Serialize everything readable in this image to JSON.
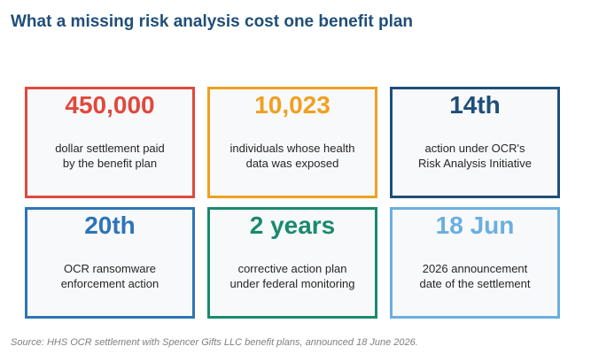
{
  "title": "What a missing risk analysis cost one benefit plan",
  "colors": {
    "title": "#1f4e79",
    "red": "#e0493d",
    "orange": "#f0a020",
    "navy": "#1f4e79",
    "blue": "#2e75b6",
    "green": "#1a8a6e",
    "light_blue": "#6aafe0",
    "card_background": "#f8f9fb",
    "description_text": "#262626",
    "source_text": "#808080"
  },
  "cards": [
    {
      "value": "450,000",
      "desc_line1": "dollar settlement paid",
      "desc_line2": "by the benefit plan",
      "color": "#e0493d"
    },
    {
      "value": "10,023",
      "desc_line1": "individuals whose health",
      "desc_line2": "data was exposed",
      "color": "#f0a020"
    },
    {
      "value": "14th",
      "desc_line1": "action under OCR's",
      "desc_line2": "Risk Analysis Initiative",
      "color": "#1f4e79"
    },
    {
      "value": "20th",
      "desc_line1": "OCR ransomware",
      "desc_line2": "enforcement action",
      "color": "#2e75b6"
    },
    {
      "value": "2 years",
      "desc_line1": "corrective action plan",
      "desc_line2": "under federal monitoring",
      "color": "#1a8a6e"
    },
    {
      "value": "18 Jun",
      "desc_line1": "2026 announcement",
      "desc_line2": "date of the settlement",
      "color": "#6aafe0"
    }
  ],
  "source": "Source: HHS OCR settlement with Spencer Gifts LLC benefit plans, announced 18 June 2026."
}
